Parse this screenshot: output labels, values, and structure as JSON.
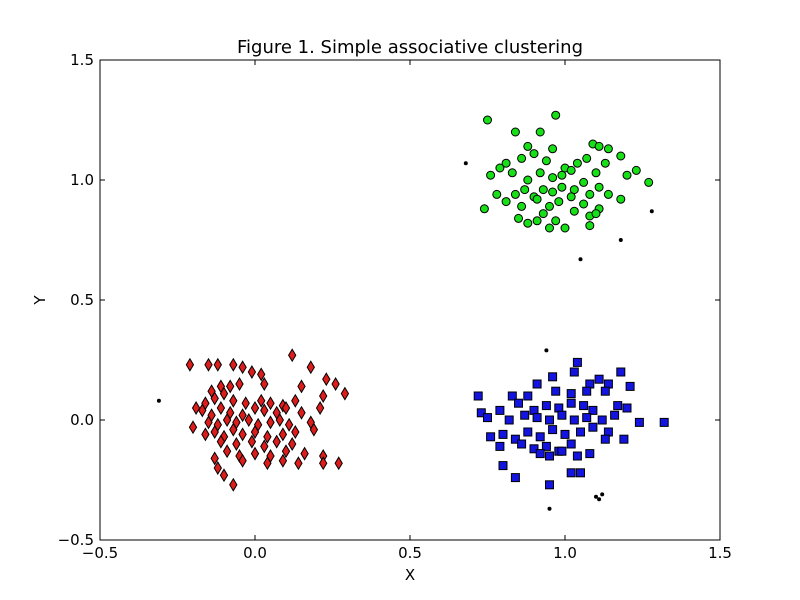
{
  "chart_data": {
    "type": "scatter",
    "title": "Figure 1. Simple associative clustering",
    "xlabel": "X",
    "ylabel": "Y",
    "xlim": [
      -0.5,
      1.5
    ],
    "ylim": [
      -0.5,
      1.5
    ],
    "xticks": [
      -0.5,
      0.0,
      0.5,
      1.0,
      1.5
    ],
    "yticks": [
      -0.5,
      0.0,
      0.5,
      1.0,
      1.5
    ],
    "xtick_labels": [
      "−0.5",
      "0.0",
      "0.5",
      "1.0",
      "1.5"
    ],
    "ytick_labels": [
      "−0.5",
      "0.0",
      "0.5",
      "1.0",
      "1.5"
    ],
    "grid": false,
    "legend": "none",
    "series": [
      {
        "marker": "diamond",
        "color": "#dd1c1c",
        "points": [
          [
            -0.21,
            0.23
          ],
          [
            -0.15,
            0.23
          ],
          [
            -0.12,
            0.23
          ],
          [
            -0.07,
            0.23
          ],
          [
            -0.04,
            0.22
          ],
          [
            -0.01,
            0.2
          ],
          [
            0.02,
            0.19
          ],
          [
            0.12,
            0.27
          ],
          [
            0.18,
            0.22
          ],
          [
            -0.14,
            0.12
          ],
          [
            -0.11,
            0.14
          ],
          [
            -0.08,
            0.14
          ],
          [
            -0.05,
            0.15
          ],
          [
            0.03,
            0.15
          ],
          [
            0.15,
            0.14
          ],
          [
            0.23,
            0.17
          ],
          [
            0.26,
            0.15
          ],
          [
            0.29,
            0.11
          ],
          [
            -0.19,
            0.05
          ],
          [
            -0.16,
            0.07
          ],
          [
            -0.13,
            0.09
          ],
          [
            -0.1,
            0.11
          ],
          [
            -0.07,
            0.08
          ],
          [
            -0.03,
            0.07
          ],
          [
            0.02,
            0.08
          ],
          [
            0.05,
            0.07
          ],
          [
            0.09,
            0.06
          ],
          [
            0.13,
            0.08
          ],
          [
            0.22,
            0.1
          ],
          [
            -0.17,
            0.04
          ],
          [
            -0.14,
            0.02
          ],
          [
            -0.11,
            0.05
          ],
          [
            -0.08,
            0.03
          ],
          [
            -0.04,
            0.02
          ],
          [
            0.0,
            0.05
          ],
          [
            0.03,
            0.04
          ],
          [
            0.07,
            0.03
          ],
          [
            0.1,
            0.05
          ],
          [
            0.15,
            0.03
          ],
          [
            0.21,
            0.05
          ],
          [
            -0.2,
            -0.03
          ],
          [
            -0.15,
            -0.01
          ],
          [
            -0.12,
            -0.02
          ],
          [
            -0.09,
            0.0
          ],
          [
            -0.06,
            -0.01
          ],
          [
            -0.02,
            0.0
          ],
          [
            0.01,
            -0.02
          ],
          [
            0.05,
            -0.01
          ],
          [
            0.08,
            0.0
          ],
          [
            0.11,
            -0.02
          ],
          [
            0.18,
            -0.01
          ],
          [
            -0.16,
            -0.06
          ],
          [
            -0.13,
            -0.05
          ],
          [
            -0.1,
            -0.07
          ],
          [
            -0.07,
            -0.04
          ],
          [
            -0.04,
            -0.06
          ],
          [
            0.0,
            -0.05
          ],
          [
            0.04,
            -0.07
          ],
          [
            0.09,
            -0.06
          ],
          [
            0.13,
            -0.05
          ],
          [
            0.19,
            -0.04
          ],
          [
            -0.11,
            -0.09
          ],
          [
            -0.06,
            -0.1
          ],
          [
            -0.01,
            -0.09
          ],
          [
            0.03,
            -0.11
          ],
          [
            0.07,
            -0.09
          ],
          [
            0.12,
            -0.1
          ],
          [
            -0.13,
            -0.16
          ],
          [
            -0.09,
            -0.13
          ],
          [
            -0.05,
            -0.15
          ],
          [
            0.0,
            -0.14
          ],
          [
            0.05,
            -0.15
          ],
          [
            0.1,
            -0.13
          ],
          [
            0.16,
            -0.14
          ],
          [
            0.22,
            -0.15
          ],
          [
            -0.12,
            -0.2
          ],
          [
            -0.04,
            -0.17
          ],
          [
            0.04,
            -0.18
          ],
          [
            0.09,
            -0.17
          ],
          [
            0.14,
            -0.18
          ],
          [
            0.22,
            -0.18
          ],
          [
            0.27,
            -0.18
          ],
          [
            -0.1,
            -0.23
          ],
          [
            -0.07,
            -0.27
          ]
        ]
      },
      {
        "marker": "circle",
        "color": "#18e018",
        "points": [
          [
            0.97,
            1.27
          ],
          [
            0.75,
            1.25
          ],
          [
            0.84,
            1.2
          ],
          [
            0.92,
            1.2
          ],
          [
            0.88,
            1.14
          ],
          [
            0.96,
            1.13
          ],
          [
            1.09,
            1.15
          ],
          [
            1.14,
            1.13
          ],
          [
            1.11,
            1.14
          ],
          [
            1.18,
            1.1
          ],
          [
            0.81,
            1.07
          ],
          [
            0.86,
            1.09
          ],
          [
            0.9,
            1.11
          ],
          [
            0.94,
            1.08
          ],
          [
            1.0,
            1.05
          ],
          [
            1.04,
            1.07
          ],
          [
            1.07,
            1.09
          ],
          [
            1.13,
            1.07
          ],
          [
            1.23,
            1.04
          ],
          [
            0.76,
            1.02
          ],
          [
            0.79,
            1.05
          ],
          [
            0.83,
            1.03
          ],
          [
            0.88,
            1.0
          ],
          [
            0.92,
            1.03
          ],
          [
            0.96,
            1.01
          ],
          [
            0.99,
            1.02
          ],
          [
            1.02,
            1.04
          ],
          [
            1.06,
            0.99
          ],
          [
            1.1,
            1.03
          ],
          [
            1.2,
            1.02
          ],
          [
            1.27,
            0.99
          ],
          [
            0.78,
            0.94
          ],
          [
            0.84,
            0.94
          ],
          [
            0.87,
            0.96
          ],
          [
            0.9,
            0.93
          ],
          [
            0.93,
            0.96
          ],
          [
            0.96,
            0.95
          ],
          [
            0.99,
            0.97
          ],
          [
            1.03,
            0.96
          ],
          [
            1.08,
            0.94
          ],
          [
            1.11,
            0.97
          ],
          [
            1.14,
            0.94
          ],
          [
            0.74,
            0.88
          ],
          [
            0.81,
            0.91
          ],
          [
            0.86,
            0.89
          ],
          [
            0.91,
            0.92
          ],
          [
            0.95,
            0.89
          ],
          [
            0.98,
            0.91
          ],
          [
            1.02,
            0.93
          ],
          [
            1.06,
            0.9
          ],
          [
            1.11,
            0.88
          ],
          [
            1.18,
            0.92
          ],
          [
            0.85,
            0.84
          ],
          [
            0.88,
            0.82
          ],
          [
            0.91,
            0.83
          ],
          [
            0.93,
            0.86
          ],
          [
            0.97,
            0.83
          ],
          [
            1.03,
            0.87
          ],
          [
            1.08,
            0.85
          ],
          [
            1.1,
            0.86
          ],
          [
            0.95,
            0.8
          ],
          [
            1.0,
            0.8
          ],
          [
            1.08,
            0.81
          ]
        ]
      },
      {
        "marker": "square",
        "color": "#1414e0",
        "points": [
          [
            1.04,
            0.24
          ],
          [
            1.03,
            0.2
          ],
          [
            0.96,
            0.18
          ],
          [
            1.18,
            0.2
          ],
          [
            1.11,
            0.17
          ],
          [
            1.14,
            0.15
          ],
          [
            1.08,
            0.15
          ],
          [
            0.72,
            0.1
          ],
          [
            0.83,
            0.1
          ],
          [
            0.88,
            0.1
          ],
          [
            0.91,
            0.15
          ],
          [
            0.97,
            0.12
          ],
          [
            1.02,
            0.11
          ],
          [
            1.07,
            0.12
          ],
          [
            1.13,
            0.12
          ],
          [
            1.21,
            0.14
          ],
          [
            0.73,
            0.03
          ],
          [
            0.79,
            0.04
          ],
          [
            0.85,
            0.07
          ],
          [
            0.9,
            0.04
          ],
          [
            0.94,
            0.06
          ],
          [
            0.98,
            0.05
          ],
          [
            1.02,
            0.07
          ],
          [
            1.06,
            0.06
          ],
          [
            1.09,
            0.04
          ],
          [
            1.17,
            0.06
          ],
          [
            1.2,
            0.05
          ],
          [
            0.75,
            0.01
          ],
          [
            0.82,
            0.0
          ],
          [
            0.87,
            0.02
          ],
          [
            0.91,
            0.01
          ],
          [
            0.95,
            0.0
          ],
          [
            0.99,
            0.02
          ],
          [
            1.03,
            0.0
          ],
          [
            1.07,
            0.01
          ],
          [
            1.12,
            0.0
          ],
          [
            1.16,
            0.02
          ],
          [
            1.24,
            -0.01
          ],
          [
            1.32,
            -0.01
          ],
          [
            0.76,
            -0.07
          ],
          [
            0.8,
            -0.06
          ],
          [
            0.84,
            -0.08
          ],
          [
            0.88,
            -0.05
          ],
          [
            0.92,
            -0.07
          ],
          [
            0.96,
            -0.04
          ],
          [
            1.0,
            -0.06
          ],
          [
            1.05,
            -0.05
          ],
          [
            1.09,
            -0.03
          ],
          [
            1.14,
            -0.05
          ],
          [
            1.19,
            -0.08
          ],
          [
            0.79,
            -0.11
          ],
          [
            0.86,
            -0.1
          ],
          [
            0.9,
            -0.12
          ],
          [
            0.94,
            -0.11
          ],
          [
            0.98,
            -0.13
          ],
          [
            1.02,
            -0.1
          ],
          [
            1.13,
            -0.08
          ],
          [
            0.8,
            -0.19
          ],
          [
            0.92,
            -0.14
          ],
          [
            0.95,
            -0.15
          ],
          [
            0.99,
            -0.13
          ],
          [
            1.04,
            -0.15
          ],
          [
            1.08,
            -0.14
          ],
          [
            0.84,
            -0.24
          ],
          [
            1.02,
            -0.22
          ],
          [
            1.05,
            -0.22
          ],
          [
            0.95,
            -0.27
          ]
        ]
      },
      {
        "marker": "dot",
        "color": "#000000",
        "points": [
          [
            -0.31,
            0.08
          ],
          [
            0.68,
            1.07
          ],
          [
            1.28,
            0.87
          ],
          [
            1.18,
            0.75
          ],
          [
            1.05,
            0.67
          ],
          [
            0.94,
            0.29
          ],
          [
            1.12,
            -0.31
          ],
          [
            1.1,
            -0.32
          ],
          [
            1.11,
            -0.33
          ],
          [
            0.95,
            -0.37
          ]
        ]
      }
    ]
  }
}
